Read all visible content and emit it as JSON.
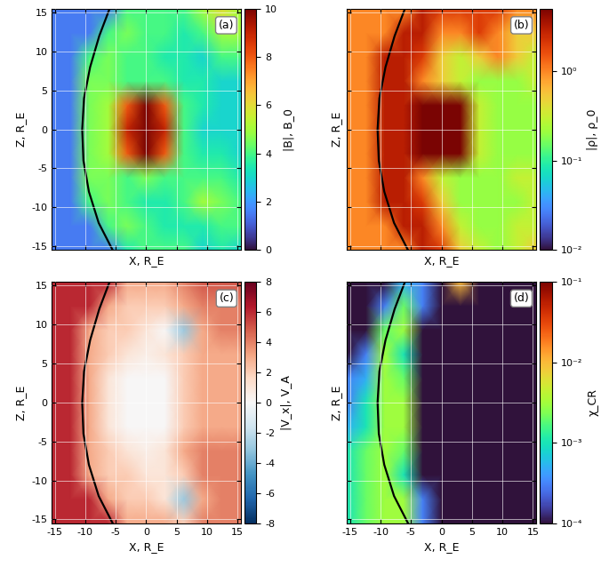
{
  "chart_data": [
    {
      "type": "heatmap",
      "label": "(a)",
      "x_label": "X, R_E",
      "y_label": "Z, R_E",
      "tick_labels": "y",
      "grid": true,
      "xlim": [
        -15.5,
        15.5
      ],
      "ylim": [
        -15.5,
        15.5
      ],
      "xticks": [
        -15,
        -10,
        -5,
        0,
        5,
        10,
        15
      ],
      "yticks": [
        -15,
        -10,
        -5,
        0,
        5,
        10,
        15
      ],
      "x": [
        -15.5,
        -12.4,
        -9.3,
        -6.2,
        -3.1,
        0,
        3.1,
        6.2,
        9.3,
        12.4,
        15.5
      ],
      "z": [
        -15.5,
        -12.4,
        -9.3,
        -6.2,
        -3.1,
        0,
        3.1,
        6.2,
        9.3,
        12.4,
        15.5
      ],
      "cells": [
        [
          1.5,
          1.5,
          1.5,
          1.5,
          3.5,
          4,
          4,
          4,
          3,
          3.5,
          3
        ],
        [
          1.5,
          1.5,
          1.5,
          4,
          4.5,
          4,
          3.5,
          3.5,
          3.5,
          4,
          4
        ],
        [
          1.5,
          1.5,
          4,
          4.5,
          4,
          3.5,
          3.5,
          4,
          5,
          4.5,
          4
        ],
        [
          1.5,
          1.5,
          4.5,
          4.5,
          4,
          4.5,
          4,
          4,
          4,
          4,
          3.5
        ],
        [
          1.5,
          1.5,
          4.5,
          5,
          8,
          10,
          8,
          4,
          3.5,
          3.5,
          3
        ],
        [
          1.5,
          1.5,
          4.5,
          5,
          9,
          10,
          9,
          4,
          3,
          3,
          3
        ],
        [
          1.5,
          1.5,
          4.5,
          5,
          8,
          10,
          8,
          4,
          3.5,
          3,
          3
        ],
        [
          1.5,
          1.5,
          4.5,
          4.5,
          4,
          4,
          4,
          3.5,
          3.5,
          3,
          3
        ],
        [
          1.5,
          1.5,
          4,
          4.5,
          4,
          4,
          3.5,
          3.5,
          3,
          4,
          4
        ],
        [
          1.5,
          1.5,
          1.5,
          4,
          4.5,
          4,
          4,
          3.5,
          4,
          5,
          5
        ],
        [
          1.5,
          1.5,
          1.5,
          1.5,
          4,
          4,
          4,
          4,
          5,
          6,
          5
        ]
      ],
      "colorbar": {
        "label": "|B|, B_0",
        "range": [
          0,
          10
        ],
        "ticks": [
          0,
          2,
          4,
          6,
          8,
          10
        ],
        "log": false
      },
      "bow_shock": {
        "x": [
          -6,
          -7.7,
          -9.2,
          -10.2,
          -10.5,
          -10.3,
          -9.4,
          -7.8,
          -5.5
        ],
        "z": [
          15.5,
          12,
          8,
          4,
          0,
          -4,
          -8,
          -12,
          -15.5
        ]
      }
    },
    {
      "type": "heatmap",
      "label": "(b)",
      "x_label": "X, R_E",
      "y_label": "Z, R_E",
      "tick_labels": false,
      "grid": true,
      "xlim": [
        -15.5,
        15.5
      ],
      "ylim": [
        -15.5,
        15.5
      ],
      "xticks": [
        -15,
        -10,
        -5,
        0,
        5,
        10,
        15
      ],
      "yticks": [
        -15,
        -10,
        -5,
        0,
        5,
        10,
        15
      ],
      "x": [
        -15.5,
        -12.4,
        -9.3,
        -6.2,
        -3.1,
        0,
        3.1,
        6.2,
        9.3,
        12.4,
        15.5
      ],
      "z": [
        -15.5,
        -12.4,
        -9.3,
        -6.2,
        -3.1,
        0,
        3.1,
        6.2,
        9.3,
        12.4,
        15.5
      ],
      "cells": [
        [
          1,
          1,
          1,
          1,
          3,
          2,
          0.5,
          0.3,
          0.2,
          0.3,
          0.5
        ],
        [
          1,
          1,
          1,
          3,
          3,
          1,
          0.3,
          0.2,
          0.2,
          0.3,
          0.3
        ],
        [
          1,
          1,
          3,
          3,
          2,
          0.5,
          0.2,
          0.2,
          0.2,
          0.2,
          0.3
        ],
        [
          1,
          1,
          3,
          3,
          1,
          0.3,
          0.2,
          0.2,
          0.2,
          0.3,
          0.3
        ],
        [
          1,
          1,
          3,
          3,
          5,
          5,
          5,
          0.3,
          0.2,
          0.2,
          0.2
        ],
        [
          1,
          1,
          3,
          3,
          5,
          5,
          5,
          0.3,
          0.2,
          0.2,
          0.2
        ],
        [
          1,
          1,
          3,
          3,
          5,
          5,
          5,
          0.3,
          0.2,
          0.2,
          0.2
        ],
        [
          1,
          1,
          3,
          3,
          1,
          0.5,
          0.3,
          0.2,
          0.2,
          0.2,
          0.3
        ],
        [
          1,
          1,
          3,
          3,
          2,
          0.5,
          0.3,
          0.5,
          1,
          0.5,
          0.3
        ],
        [
          1,
          1,
          1,
          3,
          3,
          1,
          1,
          2,
          1,
          0.5,
          0.5
        ],
        [
          1,
          1,
          1,
          1,
          3,
          2,
          2,
          2,
          2,
          1,
          1
        ]
      ],
      "colorbar": {
        "label": "|ρ|, ρ_0",
        "range": [
          0.01,
          5
        ],
        "ticks": [
          {
            "value": 0.01,
            "label": "10⁻²"
          },
          {
            "value": 0.1,
            "label": "10⁻¹"
          },
          {
            "value": 1,
            "label": "10⁰"
          }
        ],
        "log": true
      },
      "bow_shock": {
        "x": [
          -6,
          -7.7,
          -9.2,
          -10.2,
          -10.5,
          -10.3,
          -9.4,
          -7.8,
          -5.5
        ],
        "z": [
          15.5,
          12,
          8,
          4,
          0,
          -4,
          -8,
          -12,
          -15.5
        ]
      }
    },
    {
      "type": "heatmap",
      "label": "(c)",
      "x_label": "X, R_E",
      "y_label": "Z, R_E",
      "grid": true,
      "xlim": [
        -15.5,
        15.5
      ],
      "ylim": [
        -15.5,
        15.5
      ],
      "xticks": [
        -15,
        -10,
        -5,
        0,
        5,
        10,
        15
      ],
      "yticks": [
        -15,
        -10,
        -5,
        0,
        5,
        10,
        15
      ],
      "x": [
        -15.5,
        -12.4,
        -9.3,
        -6.2,
        -3.1,
        0,
        3.1,
        6.2,
        9.3,
        12.4,
        15.5
      ],
      "z": [
        -15.5,
        -12.4,
        -9.3,
        -6.2,
        -3.1,
        0,
        3.1,
        6.2,
        9.3,
        12.4,
        15.5
      ],
      "cells": [
        [
          6,
          6,
          6,
          6,
          3,
          3,
          3,
          2,
          4,
          4,
          4
        ],
        [
          6,
          6,
          6,
          3,
          2,
          2,
          1,
          -3,
          3,
          4,
          4
        ],
        [
          6,
          6,
          3,
          2,
          2,
          1,
          1,
          2,
          4,
          4,
          4
        ],
        [
          6,
          6,
          3,
          2,
          1,
          0.5,
          1,
          3,
          4,
          4,
          4
        ],
        [
          6,
          6,
          3,
          1,
          0,
          0,
          0,
          2,
          3,
          3,
          3
        ],
        [
          6,
          6,
          3,
          1,
          0,
          0,
          0,
          2,
          3,
          3,
          3
        ],
        [
          6,
          6,
          3,
          1,
          0,
          0,
          0,
          2,
          3,
          3,
          3
        ],
        [
          6,
          6,
          3,
          2,
          1,
          0.5,
          1,
          2,
          3,
          3,
          3
        ],
        [
          6,
          6,
          3,
          2,
          2,
          1,
          0,
          -3,
          3,
          4,
          4
        ],
        [
          6,
          6,
          6,
          3,
          2,
          2,
          2,
          3,
          4,
          4,
          4
        ],
        [
          6,
          6,
          6,
          6,
          3,
          3,
          3,
          4,
          5,
          5,
          5
        ]
      ],
      "colorbar": {
        "label": "|V_x|, V_A",
        "range": [
          -8,
          8
        ],
        "ticks": [
          -8,
          -6,
          -4,
          -2,
          0,
          2,
          4,
          6,
          8
        ],
        "log": false
      },
      "bow_shock": {
        "x": [
          -6,
          -7.7,
          -9.2,
          -10.2,
          -10.5,
          -10.3,
          -9.4,
          -7.8,
          -5.5
        ],
        "z": [
          15.5,
          12,
          8,
          4,
          0,
          -4,
          -8,
          -12,
          -15.5
        ]
      }
    },
    {
      "type": "heatmap",
      "label": "(d)",
      "x_label": "X, R_E",
      "y_label": "Z, R_E",
      "tick_labels": "x",
      "grid": true,
      "xlim": [
        -15.5,
        15.5
      ],
      "ylim": [
        -15.5,
        15.5
      ],
      "xticks": [
        -15,
        -10,
        -5,
        0,
        5,
        10,
        15
      ],
      "yticks": [
        -15,
        -10,
        -5,
        0,
        5,
        10,
        15
      ],
      "x": [
        -15.5,
        -12.4,
        -9.3,
        -6.2,
        -3.1,
        0,
        3.1,
        6.2,
        9.3,
        12.4,
        15.5
      ],
      "z": [
        -15.5,
        -12.4,
        -9.3,
        -6.2,
        -3.1,
        0,
        3.1,
        6.2,
        9.3,
        12.4,
        15.5
      ],
      "cells": [
        [
          0.001,
          0.002,
          0.003,
          0.003,
          0.0003,
          0.0001,
          0.0001,
          0.0001,
          0.0001,
          0.0001,
          0.0001
        ],
        [
          0.001,
          0.002,
          0.003,
          0.003,
          0.0003,
          0.0001,
          0.0001,
          0.0001,
          0.0001,
          0.0001,
          0.0001
        ],
        [
          0.001,
          0.002,
          0.003,
          0.001,
          0.0001,
          0.0001,
          0.0001,
          0.0001,
          0.0001,
          0.0001,
          0.0001
        ],
        [
          0.001,
          0.002,
          0.003,
          0.002,
          0.0001,
          0.0001,
          0.0001,
          0.0001,
          0.0001,
          0.0001,
          0.0001
        ],
        [
          0.0005,
          0.001,
          0.003,
          0.003,
          0.0001,
          0.0001,
          0.0001,
          0.0001,
          0.0001,
          0.0001,
          0.0001
        ],
        [
          0.0003,
          0.001,
          0.003,
          0.003,
          0.0001,
          0.0001,
          0.0001,
          0.0001,
          0.0001,
          0.0001,
          0.0001
        ],
        [
          0.0003,
          0.0005,
          0.003,
          0.002,
          0.0001,
          0.0001,
          0.0001,
          0.0001,
          0.0001,
          0.0001,
          0.0001
        ],
        [
          0.0001,
          0.0003,
          0.003,
          0.001,
          0.0001,
          0.0001,
          0.0001,
          0.0001,
          0.0001,
          0.0001,
          0.0001
        ],
        [
          0.0001,
          0.0001,
          0.002,
          0.003,
          0.0001,
          0.0001,
          0.0001,
          0.0001,
          0.0001,
          0.0001,
          0.0001
        ],
        [
          0.0001,
          0.0001,
          0.0003,
          0.002,
          0.0003,
          0.0001,
          0.0001,
          0.0001,
          0.0001,
          0.0001,
          0.0001
        ],
        [
          0.0001,
          0.0001,
          0.0001,
          0.0005,
          0.0003,
          0.0001,
          0.01,
          0.0001,
          0.0001,
          0.0001,
          0.0001
        ]
      ],
      "colorbar": {
        "label": "χ_CR",
        "range": [
          0.0001,
          0.1
        ],
        "ticks": [
          {
            "value": 0.0001,
            "label": "10⁻⁴"
          },
          {
            "value": 0.001,
            "label": "10⁻³"
          },
          {
            "value": 0.01,
            "label": "10⁻²"
          },
          {
            "value": 0.1,
            "label": "10⁻¹"
          }
        ],
        "log": true
      },
      "bow_shock": {
        "x": [
          -6,
          -7.7,
          -9.2,
          -10.2,
          -10.5,
          -10.3,
          -9.4,
          -7.8,
          -5.5
        ],
        "z": [
          15.5,
          12,
          8,
          4,
          0,
          -4,
          -8,
          -12,
          -15.5
        ]
      }
    }
  ]
}
